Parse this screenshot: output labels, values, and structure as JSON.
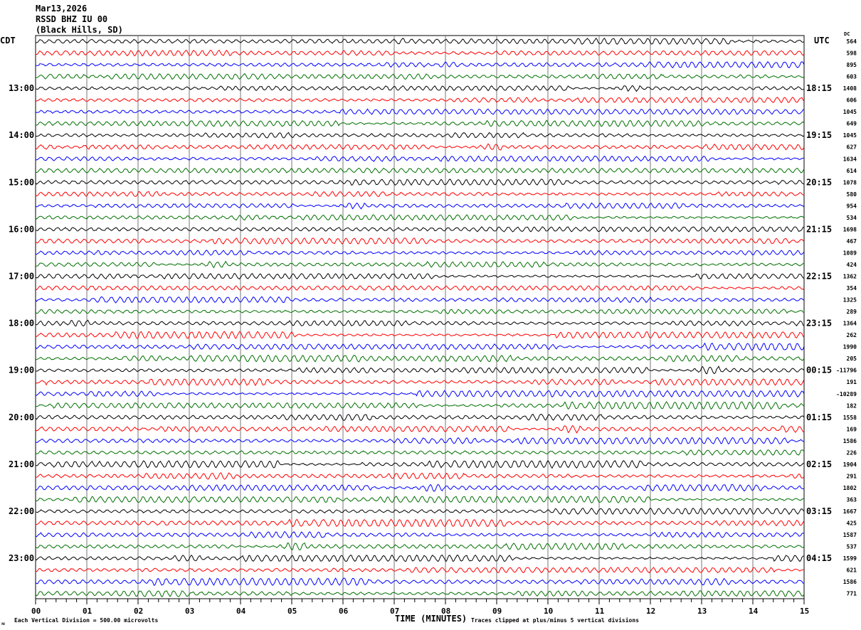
{
  "chart_data": {
    "type": "line",
    "title": [
      "Mar13,2026",
      "RSSD BHZ IU 00",
      "(Black Hills, SD)"
    ],
    "left_tz": "CDT",
    "right_tz": "UTC",
    "dc_label": "DC",
    "left_labels": [
      "13:00",
      "14:00",
      "15:00",
      "16:00",
      "17:00",
      "18:00",
      "19:00",
      "20:00",
      "21:00",
      "22:00",
      "23:00"
    ],
    "right_labels": [
      "18:15",
      "19:15",
      "20:15",
      "21:15",
      "22:15",
      "23:15",
      "00:15",
      "01:15",
      "02:15",
      "03:15",
      "04:15"
    ],
    "x_ticks": [
      "00",
      "01",
      "02",
      "03",
      "04",
      "05",
      "06",
      "07",
      "08",
      "09",
      "10",
      "11",
      "12",
      "13",
      "14",
      "15"
    ],
    "xlabel": "TIME (MINUTES)",
    "xlim": [
      0,
      15
    ],
    "trace_count": 48,
    "trace_colors": [
      "#000000",
      "#ff0000",
      "#0000ff",
      "#007000"
    ],
    "dc_offsets": [
      "564",
      "598",
      "895",
      "603",
      "1408",
      "606",
      "1045",
      "649",
      "1045",
      "627",
      "1634",
      "614",
      "1078",
      "580",
      "954",
      "534",
      "1698",
      "467",
      "1089",
      "424",
      "1362",
      "354",
      "1325",
      "289",
      "1364",
      "262",
      "1990",
      "205",
      "-11796",
      "191",
      "-10289",
      "182",
      "1558",
      "169",
      "1586",
      "226",
      "1904",
      "291",
      "1802",
      "363",
      "1667",
      "425",
      "1587",
      "537",
      "1599",
      "621",
      "1586",
      "771"
    ],
    "footer_left": "Each Vertical Division =  500.00 microvolts",
    "footer_right": "Traces clipped at plus/minus 5 vertical divisions",
    "corner_mark": "ᴍ"
  }
}
